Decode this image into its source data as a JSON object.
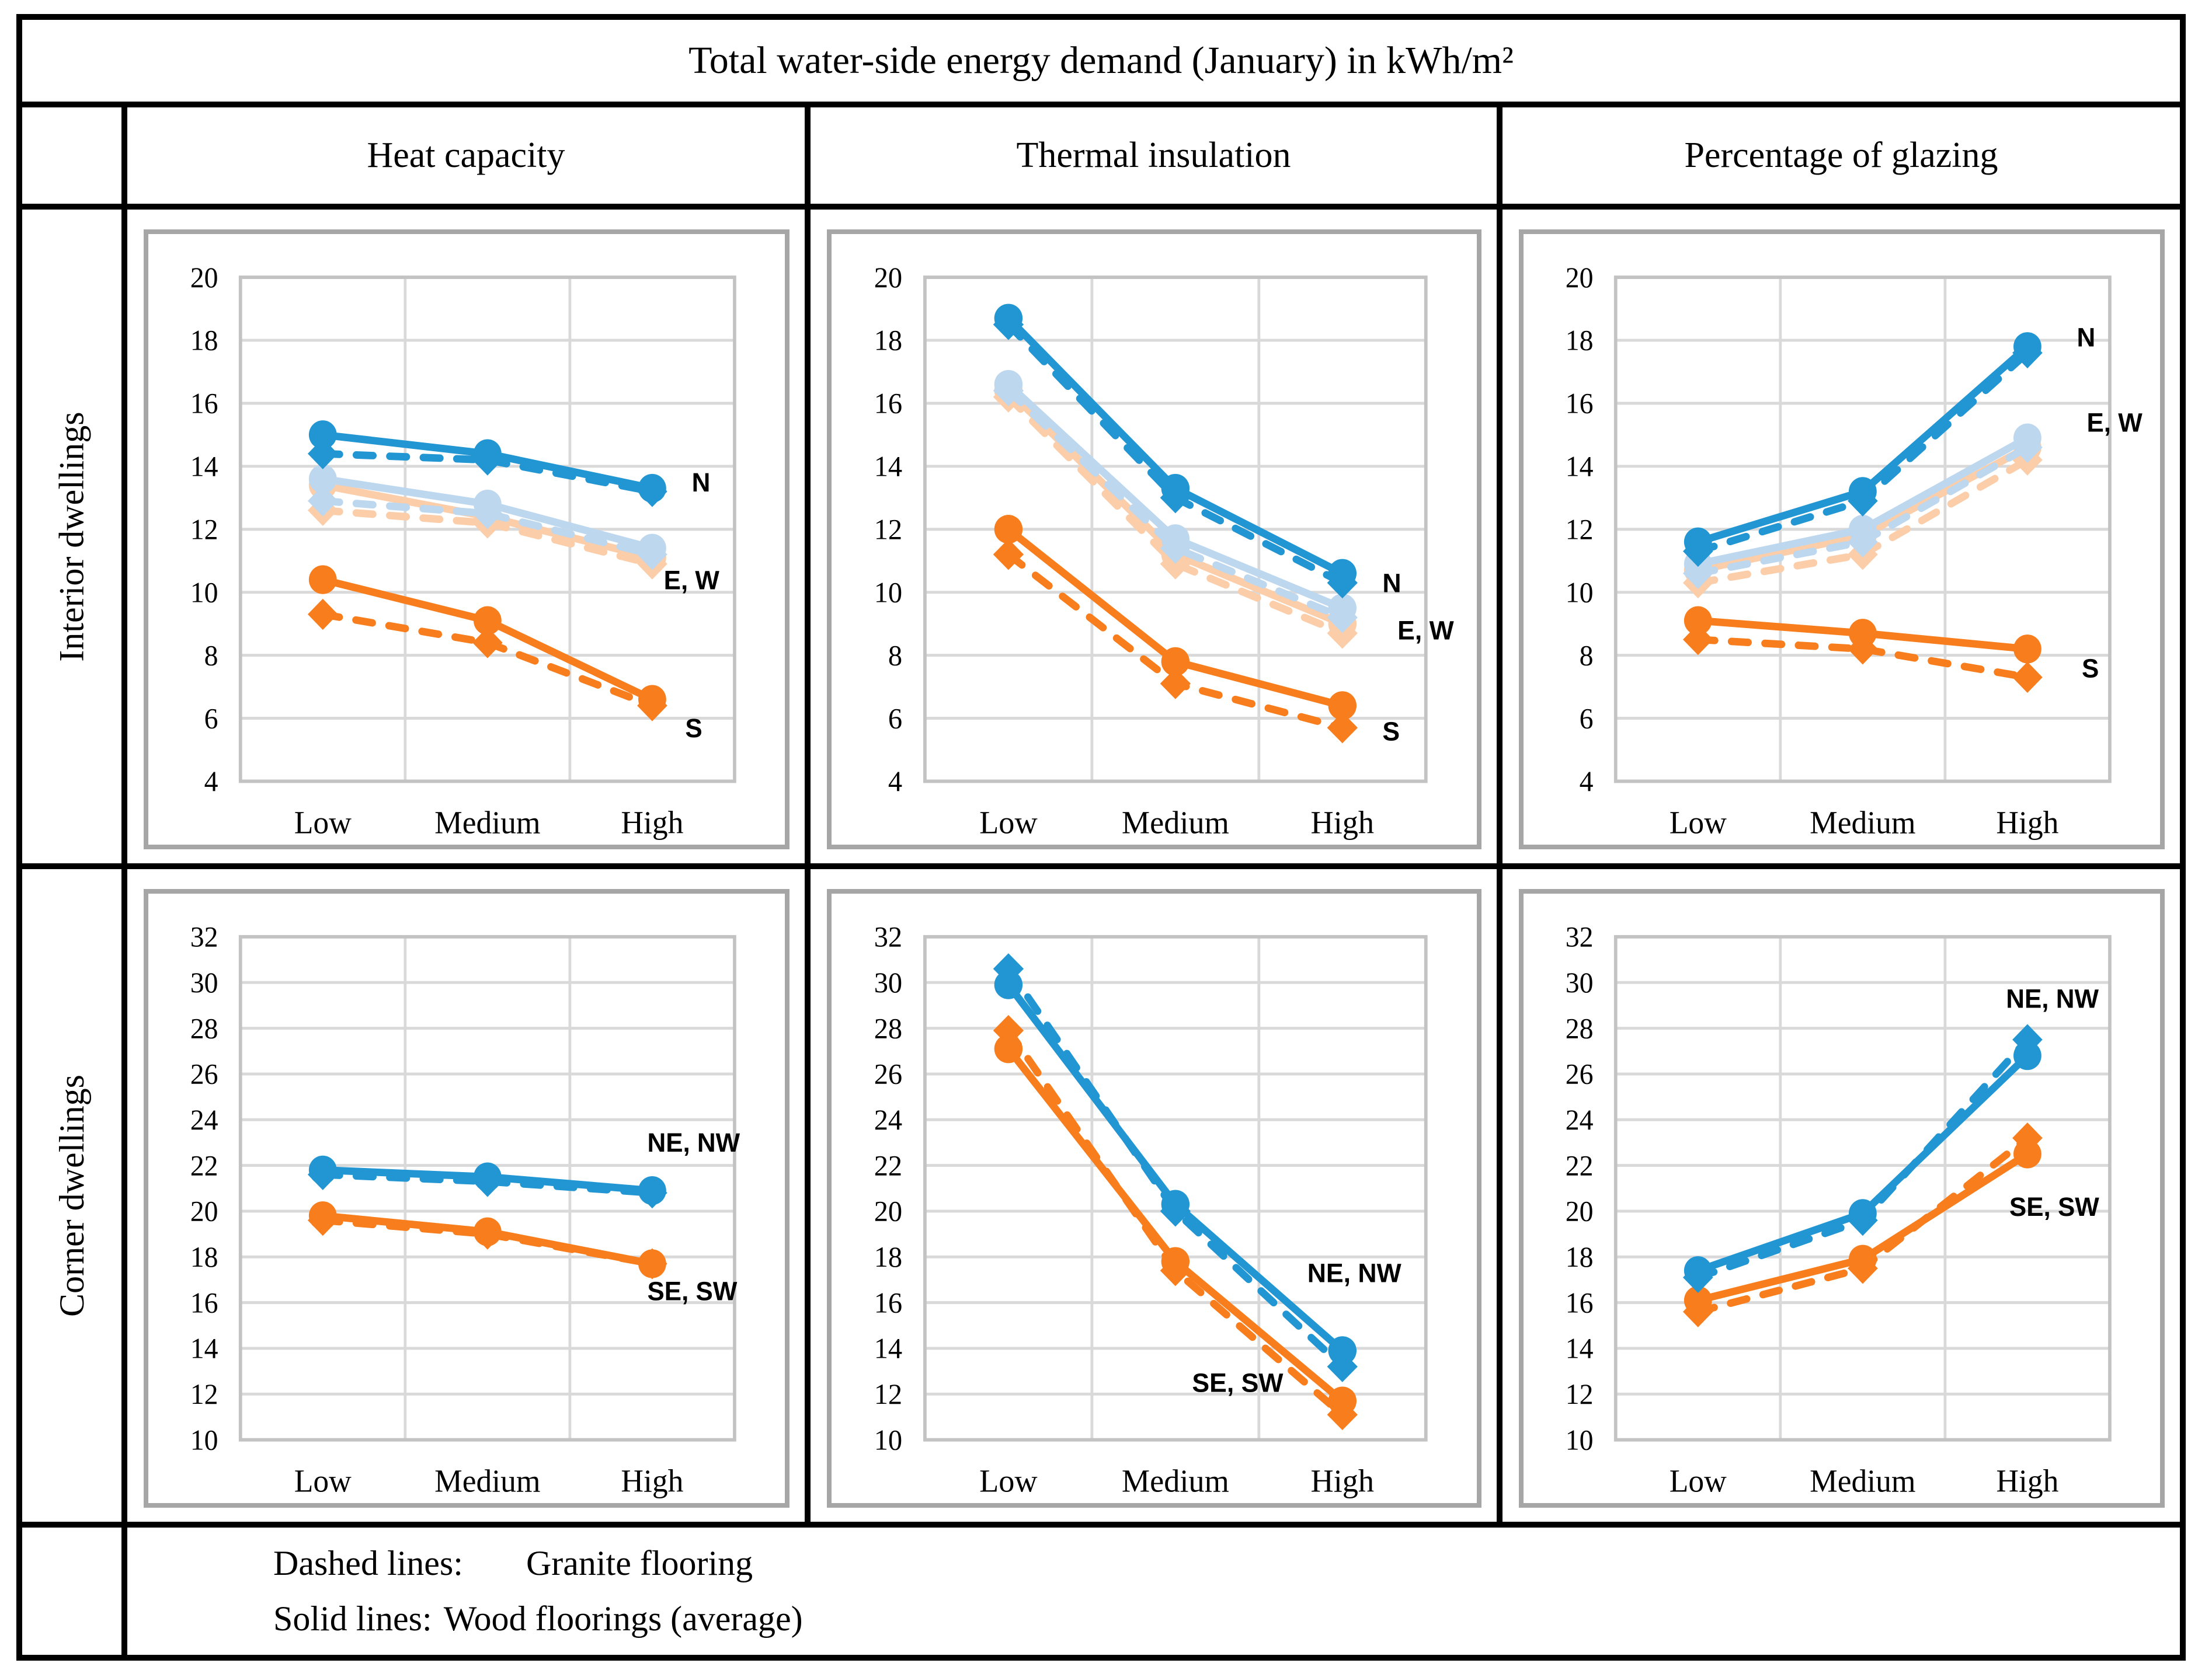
{
  "title": "Total water-side energy demand (January) in kWh/m²",
  "column_headers": [
    "Heat capacity",
    "Thermal insulation",
    "Percentage of glazing"
  ],
  "row_headers": [
    "Interior dwellings",
    "Corner dwellings"
  ],
  "legend": {
    "line1_label": "Dashed lines:",
    "line1_value": "Granite flooring",
    "line2_label": "Solid lines:",
    "line2_value": "Wood floorings (average)"
  },
  "colors": {
    "blue": "#2196D3",
    "light_blue": "#BDD7EE",
    "orange": "#F87D1C",
    "light_orange": "#FBCDA8",
    "gridline": "#D9D9D9",
    "plot_border": "#C3C3C3",
    "chart_border": "#A6A6A6"
  },
  "chart_data": [
    {
      "type": "line",
      "row": "Interior dwellings",
      "column": "Heat capacity",
      "categories": [
        "Low",
        "Medium",
        "High"
      ],
      "ylim": [
        4,
        20
      ],
      "ytick_step": 2,
      "grid": true,
      "series": [
        {
          "orientation": "E, W",
          "flooring": "Granite",
          "line": "dashed",
          "marker": "diamond",
          "color": "light_orange",
          "values": [
            12.6,
            12.2,
            10.9
          ]
        },
        {
          "orientation": "E, W",
          "flooring": "Wood",
          "line": "solid",
          "marker": "circle",
          "color": "light_orange",
          "values": [
            13.4,
            12.4,
            11.1
          ]
        },
        {
          "orientation": "E, W",
          "flooring": "Granite",
          "line": "dashed",
          "marker": "diamond",
          "color": "light_blue",
          "values": [
            12.9,
            12.5,
            11.2
          ]
        },
        {
          "orientation": "E, W",
          "flooring": "Wood",
          "line": "solid",
          "marker": "circle",
          "color": "light_blue",
          "values": [
            13.6,
            12.8,
            11.4
          ]
        },
        {
          "orientation": "S",
          "flooring": "Granite",
          "line": "dashed",
          "marker": "diamond",
          "color": "orange",
          "values": [
            9.3,
            8.4,
            6.4
          ]
        },
        {
          "orientation": "S",
          "flooring": "Wood",
          "line": "solid",
          "marker": "circle",
          "color": "orange",
          "values": [
            10.4,
            9.1,
            6.6
          ]
        },
        {
          "orientation": "N",
          "flooring": "Granite",
          "line": "dashed",
          "marker": "diamond",
          "color": "blue",
          "values": [
            14.4,
            14.2,
            13.2
          ]
        },
        {
          "orientation": "N",
          "flooring": "Wood",
          "line": "solid",
          "marker": "circle",
          "color": "blue",
          "values": [
            15.0,
            14.4,
            13.3
          ]
        }
      ],
      "annotations": [
        {
          "text": "N",
          "band": 2.24,
          "value": 13.2
        },
        {
          "text": "E, W",
          "band": 2.07,
          "value": 10.1
        },
        {
          "text": "S",
          "band": 2.2,
          "value": 5.4
        }
      ]
    },
    {
      "type": "line",
      "row": "Interior dwellings",
      "column": "Thermal insulation",
      "categories": [
        "Low",
        "Medium",
        "High"
      ],
      "ylim": [
        4,
        20
      ],
      "ytick_step": 2,
      "grid": true,
      "series": [
        {
          "orientation": "E, W",
          "flooring": "Granite",
          "line": "dashed",
          "marker": "diamond",
          "color": "light_orange",
          "values": [
            16.2,
            10.9,
            8.7
          ]
        },
        {
          "orientation": "E, W",
          "flooring": "Wood",
          "line": "solid",
          "marker": "circle",
          "color": "light_orange",
          "values": [
            16.4,
            11.2,
            9.0
          ]
        },
        {
          "orientation": "E, W",
          "flooring": "Granite",
          "line": "dashed",
          "marker": "diamond",
          "color": "light_blue",
          "values": [
            16.4,
            11.4,
            9.2
          ]
        },
        {
          "orientation": "E, W",
          "flooring": "Wood",
          "line": "solid",
          "marker": "circle",
          "color": "light_blue",
          "values": [
            16.6,
            11.7,
            9.5
          ]
        },
        {
          "orientation": "S",
          "flooring": "Granite",
          "line": "dashed",
          "marker": "diamond",
          "color": "orange",
          "values": [
            11.2,
            7.1,
            5.7
          ]
        },
        {
          "orientation": "S",
          "flooring": "Wood",
          "line": "solid",
          "marker": "circle",
          "color": "orange",
          "values": [
            12.0,
            7.8,
            6.4
          ]
        },
        {
          "orientation": "N",
          "flooring": "Granite",
          "line": "dashed",
          "marker": "diamond",
          "color": "blue",
          "values": [
            18.5,
            13.0,
            10.3
          ]
        },
        {
          "orientation": "N",
          "flooring": "Wood",
          "line": "solid",
          "marker": "circle",
          "color": "blue",
          "values": [
            18.7,
            13.3,
            10.6
          ]
        }
      ],
      "annotations": [
        {
          "text": "N",
          "band": 2.24,
          "value": 10.0
        },
        {
          "text": "E, W",
          "band": 2.33,
          "value": 8.5
        },
        {
          "text": "S",
          "band": 2.24,
          "value": 5.3
        }
      ]
    },
    {
      "type": "line",
      "row": "Interior dwellings",
      "column": "Percentage of glazing",
      "categories": [
        "Low",
        "Medium",
        "High"
      ],
      "ylim": [
        4,
        20
      ],
      "ytick_step": 2,
      "grid": true,
      "series": [
        {
          "orientation": "E, W",
          "flooring": "Granite",
          "line": "dashed",
          "marker": "diamond",
          "color": "light_orange",
          "values": [
            10.3,
            11.2,
            14.2
          ]
        },
        {
          "orientation": "E, W",
          "flooring": "Wood",
          "line": "solid",
          "marker": "circle",
          "color": "light_orange",
          "values": [
            10.7,
            11.8,
            14.6
          ]
        },
        {
          "orientation": "E, W",
          "flooring": "Granite",
          "line": "dashed",
          "marker": "diamond",
          "color": "light_blue",
          "values": [
            10.6,
            11.6,
            14.6
          ]
        },
        {
          "orientation": "E, W",
          "flooring": "Wood",
          "line": "solid",
          "marker": "circle",
          "color": "light_blue",
          "values": [
            10.9,
            12.0,
            14.9
          ]
        },
        {
          "orientation": "S",
          "flooring": "Granite",
          "line": "dashed",
          "marker": "diamond",
          "color": "orange",
          "values": [
            8.5,
            8.2,
            7.3
          ]
        },
        {
          "orientation": "S",
          "flooring": "Wood",
          "line": "solid",
          "marker": "circle",
          "color": "orange",
          "values": [
            9.1,
            8.7,
            8.2
          ]
        },
        {
          "orientation": "N",
          "flooring": "Granite",
          "line": "dashed",
          "marker": "diamond",
          "color": "blue",
          "values": [
            11.3,
            12.9,
            17.6
          ]
        },
        {
          "orientation": "N",
          "flooring": "Wood",
          "line": "solid",
          "marker": "circle",
          "color": "blue",
          "values": [
            11.6,
            13.2,
            17.8
          ]
        }
      ],
      "annotations": [
        {
          "text": "N",
          "band": 2.3,
          "value": 17.8
        },
        {
          "text": "E, W",
          "band": 2.36,
          "value": 15.1
        },
        {
          "text": "S",
          "band": 2.33,
          "value": 7.3
        }
      ]
    },
    {
      "type": "line",
      "row": "Corner dwellings",
      "column": "Heat capacity",
      "categories": [
        "Low",
        "Medium",
        "High"
      ],
      "ylim": [
        10,
        32
      ],
      "ytick_step": 2,
      "grid": true,
      "series": [
        {
          "orientation": "SE, SW",
          "flooring": "Granite",
          "line": "dashed",
          "marker": "diamond",
          "color": "orange",
          "values": [
            19.6,
            19.0,
            17.7
          ]
        },
        {
          "orientation": "SE, SW",
          "flooring": "Wood",
          "line": "solid",
          "marker": "circle",
          "color": "orange",
          "values": [
            19.8,
            19.1,
            17.7
          ]
        },
        {
          "orientation": "NE, NW",
          "flooring": "Granite",
          "line": "dashed",
          "marker": "diamond",
          "color": "blue",
          "values": [
            21.6,
            21.3,
            20.8
          ]
        },
        {
          "orientation": "NE, NW",
          "flooring": "Wood",
          "line": "solid",
          "marker": "circle",
          "color": "blue",
          "values": [
            21.8,
            21.5,
            20.9
          ]
        }
      ],
      "annotations": [
        {
          "text": "NE, NW",
          "band": 1.97,
          "value": 22.6
        },
        {
          "text": "SE, SW",
          "band": 1.97,
          "value": 16.1
        }
      ]
    },
    {
      "type": "line",
      "row": "Corner dwellings",
      "column": "Thermal insulation",
      "categories": [
        "Low",
        "Medium",
        "High"
      ],
      "ylim": [
        10,
        32
      ],
      "ytick_step": 2,
      "grid": true,
      "series": [
        {
          "orientation": "SE, SW",
          "flooring": "Granite",
          "line": "dashed",
          "marker": "diamond",
          "color": "orange",
          "values": [
            27.9,
            17.4,
            11.1
          ]
        },
        {
          "orientation": "SE, SW",
          "flooring": "Wood",
          "line": "solid",
          "marker": "circle",
          "color": "orange",
          "values": [
            27.1,
            17.8,
            11.7
          ]
        },
        {
          "orientation": "NE, NW",
          "flooring": "Granite",
          "line": "dashed",
          "marker": "diamond",
          "color": "blue",
          "values": [
            30.6,
            20.0,
            13.2
          ]
        },
        {
          "orientation": "NE, NW",
          "flooring": "Wood",
          "line": "solid",
          "marker": "circle",
          "color": "blue",
          "values": [
            29.9,
            20.3,
            13.9
          ]
        }
      ],
      "annotations": [
        {
          "text": "NE, NW",
          "band": 1.79,
          "value": 16.9
        },
        {
          "text": "SE, SW",
          "band": 1.1,
          "value": 12.1
        }
      ]
    },
    {
      "type": "line",
      "row": "Corner dwellings",
      "column": "Percentage of glazing",
      "categories": [
        "Low",
        "Medium",
        "High"
      ],
      "ylim": [
        10,
        32
      ],
      "ytick_step": 2,
      "grid": true,
      "series": [
        {
          "orientation": "SE, SW",
          "flooring": "Granite",
          "line": "dashed",
          "marker": "diamond",
          "color": "orange",
          "values": [
            15.6,
            17.5,
            23.2
          ]
        },
        {
          "orientation": "SE, SW",
          "flooring": "Wood",
          "line": "solid",
          "marker": "circle",
          "color": "orange",
          "values": [
            16.1,
            17.9,
            22.5
          ]
        },
        {
          "orientation": "NE, NW",
          "flooring": "Granite",
          "line": "dashed",
          "marker": "diamond",
          "color": "blue",
          "values": [
            17.1,
            19.6,
            27.5
          ]
        },
        {
          "orientation": "NE, NW",
          "flooring": "Wood",
          "line": "solid",
          "marker": "circle",
          "color": "blue",
          "values": [
            17.4,
            19.9,
            26.8
          ]
        }
      ],
      "annotations": [
        {
          "text": "NE, NW",
          "band": 1.87,
          "value": 28.9
        },
        {
          "text": "SE, SW",
          "band": 1.89,
          "value": 19.8
        }
      ]
    }
  ]
}
